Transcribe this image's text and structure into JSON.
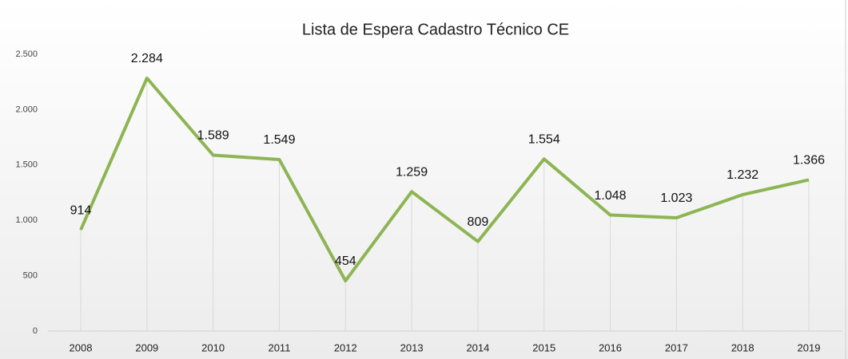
{
  "chart_data": {
    "type": "line",
    "title": "Lista de Espera Cadastro Técnico CE",
    "categories": [
      "2008",
      "2009",
      "2010",
      "2011",
      "2012",
      "2013",
      "2014",
      "2015",
      "2016",
      "2017",
      "2018",
      "2019"
    ],
    "values": [
      914,
      2284,
      1589,
      1549,
      454,
      1259,
      809,
      1554,
      1048,
      1023,
      1232,
      1366
    ],
    "value_labels": [
      "914",
      "2.284",
      "1.589",
      "1.549",
      "454",
      "1.259",
      "809",
      "1.554",
      "1.048",
      "1.023",
      "1.232",
      "1.366"
    ],
    "color": "#8db553",
    "ylim": [
      0,
      2500
    ],
    "yticks": [
      0,
      500,
      {
        "value": 1000,
        "label": "1.000"
      },
      {
        "value": 1500,
        "label": "1.500"
      },
      {
        "value": 2000,
        "label": "2.000"
      },
      {
        "value": 2500,
        "label": "2.500"
      }
    ],
    "grid": false
  }
}
